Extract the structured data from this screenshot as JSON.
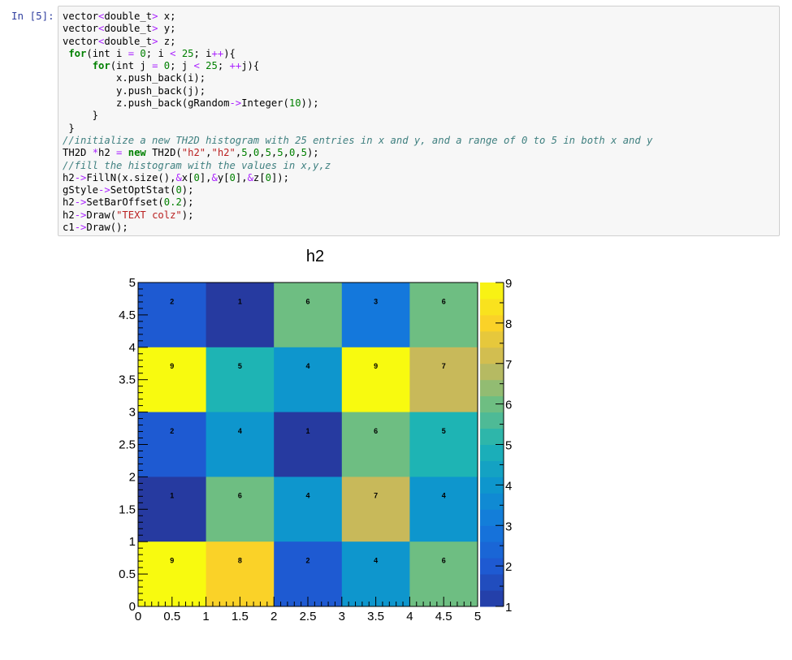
{
  "prompt": "In [5]:",
  "code_lines": [
    [
      [
        "ty",
        "vector"
      ],
      [
        "op",
        "<"
      ],
      [
        "ty",
        "double_t"
      ],
      [
        "op",
        ">"
      ],
      [
        "ty",
        " x;"
      ]
    ],
    [
      [
        "ty",
        "vector"
      ],
      [
        "op",
        "<"
      ],
      [
        "ty",
        "double_t"
      ],
      [
        "op",
        ">"
      ],
      [
        "ty",
        " y;"
      ]
    ],
    [
      [
        "ty",
        "vector"
      ],
      [
        "op",
        "<"
      ],
      [
        "ty",
        "double_t"
      ],
      [
        "op",
        ">"
      ],
      [
        "ty",
        " z;"
      ]
    ],
    [
      [
        "ty",
        " "
      ],
      [
        "kw",
        "for"
      ],
      [
        "ty",
        "(int i "
      ],
      [
        "op",
        "="
      ],
      [
        "ty",
        " "
      ],
      [
        "num",
        "0"
      ],
      [
        "ty",
        "; i "
      ],
      [
        "op",
        "<"
      ],
      [
        "ty",
        " "
      ],
      [
        "num",
        "25"
      ],
      [
        "ty",
        "; i"
      ],
      [
        "op",
        "++"
      ],
      [
        "ty",
        "){"
      ]
    ],
    [
      [
        "ty",
        "     "
      ],
      [
        "kw",
        "for"
      ],
      [
        "ty",
        "(int j "
      ],
      [
        "op",
        "="
      ],
      [
        "ty",
        " "
      ],
      [
        "num",
        "0"
      ],
      [
        "ty",
        "; j "
      ],
      [
        "op",
        "<"
      ],
      [
        "ty",
        " "
      ],
      [
        "num",
        "25"
      ],
      [
        "ty",
        "; "
      ],
      [
        "op",
        "++"
      ],
      [
        "ty",
        "j){"
      ]
    ],
    [
      [
        "ty",
        "         x."
      ],
      [
        "ty",
        "push_back(i);"
      ]
    ],
    [
      [
        "ty",
        "         y."
      ],
      [
        "ty",
        "push_back(j);"
      ]
    ],
    [
      [
        "ty",
        "         z."
      ],
      [
        "ty",
        "push_back(gRandom"
      ],
      [
        "op",
        "->"
      ],
      [
        "ty",
        "Integer("
      ],
      [
        "num",
        "10"
      ],
      [
        "ty",
        "));"
      ]
    ],
    [
      [
        "ty",
        "     }"
      ]
    ],
    [
      [
        "ty",
        " }"
      ]
    ],
    [
      [
        "cm",
        "//initialize a new TH2D histogram with 25 entries in x and y, and a range of 0 to 5 in both x and y"
      ]
    ],
    [
      [
        "ty",
        "TH2D "
      ],
      [
        "op",
        "*"
      ],
      [
        "ty",
        "h2 "
      ],
      [
        "op",
        "="
      ],
      [
        "ty",
        " "
      ],
      [
        "kw",
        "new"
      ],
      [
        "ty",
        " TH2D("
      ],
      [
        "str",
        "\"h2\""
      ],
      [
        "ty",
        ","
      ],
      [
        "str",
        "\"h2\""
      ],
      [
        "ty",
        ","
      ],
      [
        "num",
        "5"
      ],
      [
        "ty",
        ","
      ],
      [
        "num",
        "0"
      ],
      [
        "ty",
        ","
      ],
      [
        "num",
        "5"
      ],
      [
        "ty",
        ","
      ],
      [
        "num",
        "5"
      ],
      [
        "ty",
        ","
      ],
      [
        "num",
        "0"
      ],
      [
        "ty",
        ","
      ],
      [
        "num",
        "5"
      ],
      [
        "ty",
        ");"
      ]
    ],
    [
      [
        "cm",
        "//fill the histogram with the values in x,y,z"
      ]
    ],
    [
      [
        "ty",
        "h2"
      ],
      [
        "op",
        "->"
      ],
      [
        "ty",
        "FillN(x.size(),"
      ],
      [
        "op",
        "&"
      ],
      [
        "ty",
        "x["
      ],
      [
        "num",
        "0"
      ],
      [
        "ty",
        "],"
      ],
      [
        "op",
        "&"
      ],
      [
        "ty",
        "y["
      ],
      [
        "num",
        "0"
      ],
      [
        "ty",
        "],"
      ],
      [
        "op",
        "&"
      ],
      [
        "ty",
        "z["
      ],
      [
        "num",
        "0"
      ],
      [
        "ty",
        "]);"
      ]
    ],
    [
      [
        "ty",
        "gStyle"
      ],
      [
        "op",
        "->"
      ],
      [
        "ty",
        "SetOptStat("
      ],
      [
        "num",
        "0"
      ],
      [
        "ty",
        ");"
      ]
    ],
    [
      [
        "ty",
        "h2"
      ],
      [
        "op",
        "->"
      ],
      [
        "ty",
        "SetBarOffset("
      ],
      [
        "num",
        "0.2"
      ],
      [
        "ty",
        ");"
      ]
    ],
    [
      [
        "ty",
        "h2"
      ],
      [
        "op",
        "->"
      ],
      [
        "ty",
        "Draw("
      ],
      [
        "str",
        "\"TEXT colz\""
      ],
      [
        "ty",
        ");"
      ]
    ],
    [
      [
        "ty",
        "c1"
      ],
      [
        "op",
        "->"
      ],
      [
        "ty",
        "Draw();"
      ]
    ]
  ],
  "chart_data": {
    "type": "heatmap",
    "title": "h2",
    "xlim": [
      0,
      5
    ],
    "ylim": [
      0,
      5
    ],
    "x_ticks": [
      "0",
      "0.5",
      "1",
      "1.5",
      "2",
      "2.5",
      "3",
      "3.5",
      "4",
      "4.5",
      "5"
    ],
    "y_ticks": [
      "0",
      "0.5",
      "1",
      "1.5",
      "2",
      "2.5",
      "3",
      "3.5",
      "4",
      "4.5",
      "5"
    ],
    "colorbar_ticks": [
      "1",
      "2",
      "3",
      "4",
      "5",
      "6",
      "7",
      "8",
      "9"
    ],
    "zlim": [
      1,
      9
    ],
    "cells_row_major_top_to_bottom": [
      [
        2,
        1,
        6,
        3,
        6
      ],
      [
        9,
        5,
        4,
        9,
        7
      ],
      [
        2,
        4,
        1,
        6,
        5
      ],
      [
        1,
        6,
        4,
        7,
        4
      ],
      [
        9,
        8,
        2,
        4,
        6
      ]
    ]
  }
}
